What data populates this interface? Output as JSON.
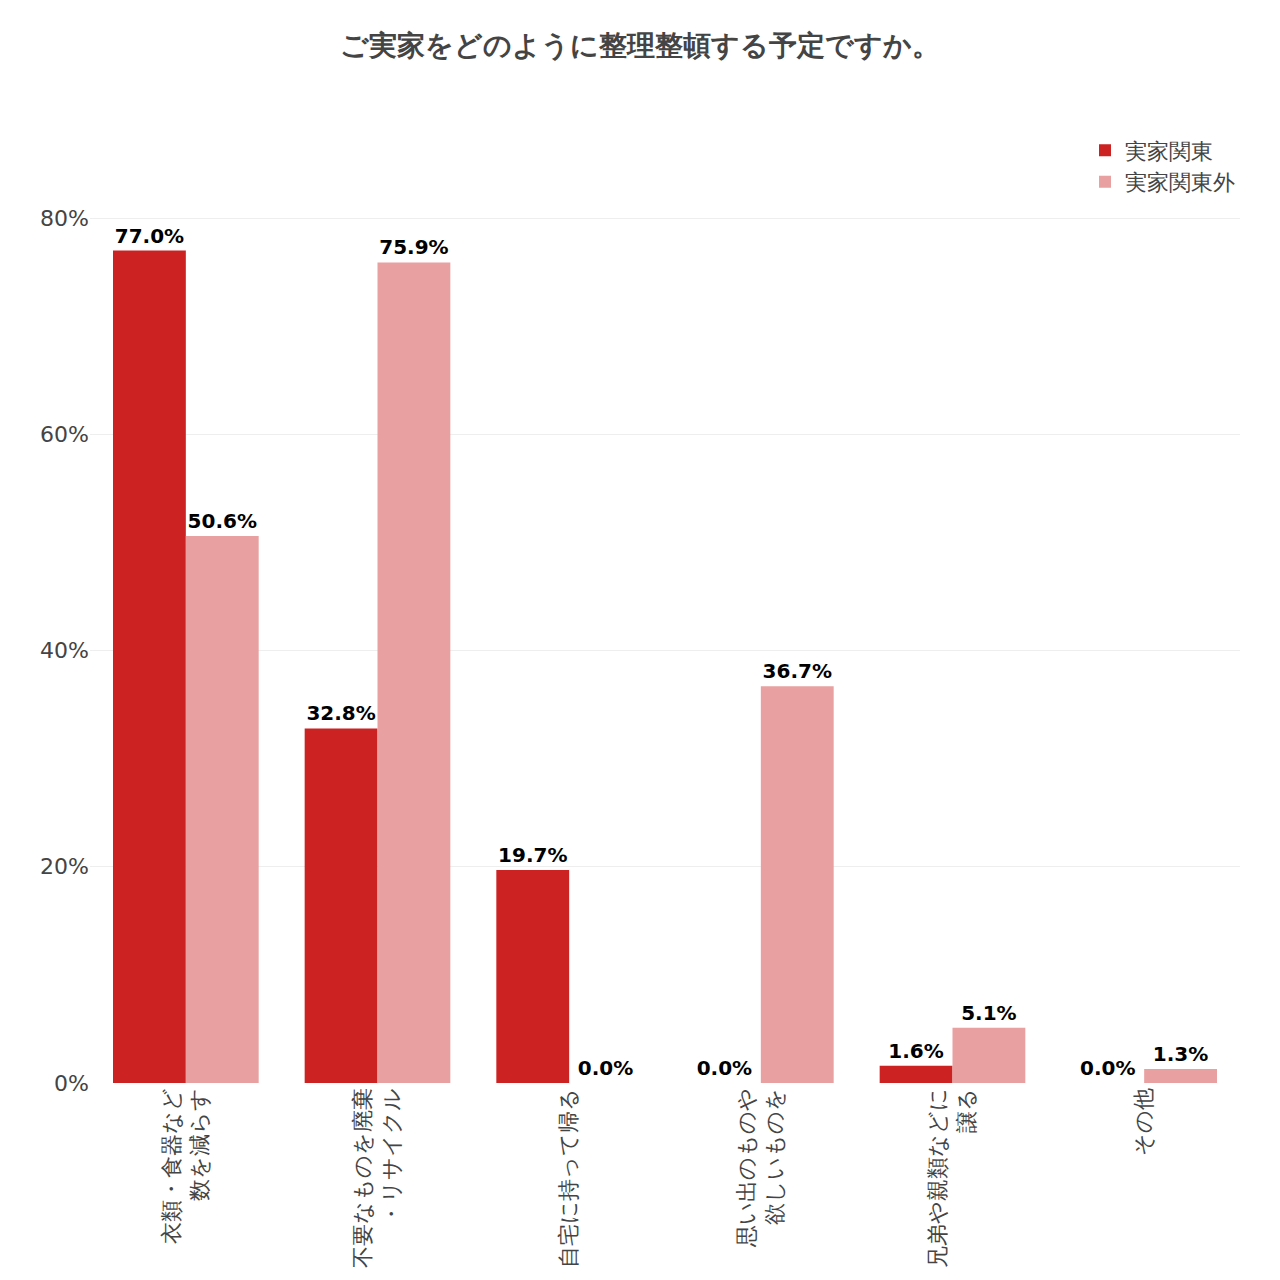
{
  "chart_data": {
    "type": "bar",
    "title": "ご実家をどのように整理整頓する予定ですか。",
    "categories": [
      "衣類・食器など\n数を減らす",
      "不要なものを廃棄\n・リサイクル",
      "自宅に持って帰る",
      "思い出のものや\n欲しいものを",
      "兄弟や親類などに\n譲る",
      "その他"
    ],
    "series": [
      {
        "name": "実家関東",
        "color": "#cc2222",
        "values": [
          77.0,
          32.8,
          19.7,
          0.0,
          1.6,
          0.0
        ],
        "value_labels": [
          "77.0%",
          "32.8%",
          "19.7%",
          "0.0%",
          "1.6%",
          "0.0%"
        ]
      },
      {
        "name": "実家関東外",
        "color": "#e8a0a0",
        "values": [
          50.6,
          75.9,
          0.0,
          36.7,
          5.1,
          1.3
        ],
        "value_labels": [
          "50.6%",
          "75.9%",
          "0.0%",
          "36.7%",
          "5.1%",
          "1.3%"
        ]
      }
    ],
    "ylim": [
      0,
      90
    ],
    "yticks": [
      {
        "value": 0,
        "label": "0%"
      },
      {
        "value": 20,
        "label": "20%"
      },
      {
        "value": 40,
        "label": "40%"
      },
      {
        "value": 60,
        "label": "60%"
      },
      {
        "value": 80,
        "label": "80%"
      }
    ],
    "grid": true,
    "legend": "upper right",
    "data_labels": true
  }
}
